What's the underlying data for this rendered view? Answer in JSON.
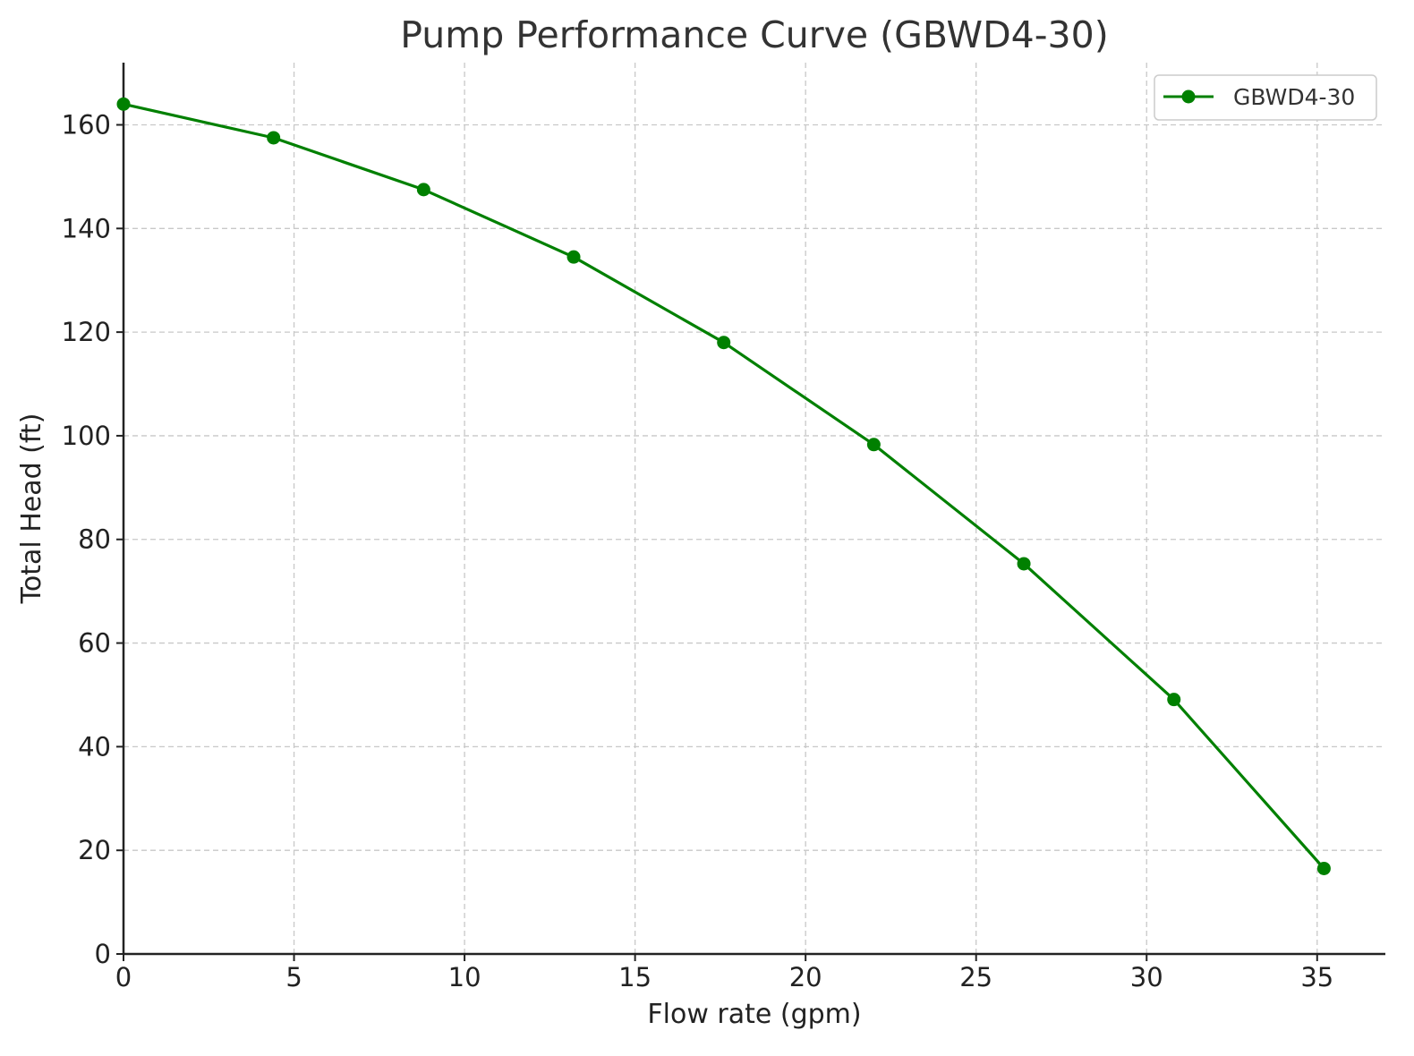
{
  "chart_data": {
    "type": "line",
    "title": "Pump Performance Curve (GBWD4-30)",
    "xlabel": "Flow rate (gpm)",
    "ylabel": "Total Head (ft)",
    "xlim": [
      0,
      37
    ],
    "ylim": [
      0,
      172
    ],
    "xticks": [
      0,
      5,
      10,
      15,
      20,
      25,
      30,
      35
    ],
    "yticks": [
      0,
      20,
      40,
      60,
      80,
      100,
      120,
      140,
      160
    ],
    "grid": true,
    "legend_position": "top-right",
    "series": [
      {
        "name": "GBWD4-30",
        "color": "#008000",
        "marker": "circle",
        "x": [
          0,
          4.4,
          8.8,
          13.2,
          17.6,
          22.0,
          26.4,
          30.8,
          35.2
        ],
        "y": [
          164,
          157.5,
          147.5,
          134.5,
          118,
          98.3,
          75.3,
          49.1,
          16.5
        ]
      }
    ]
  }
}
